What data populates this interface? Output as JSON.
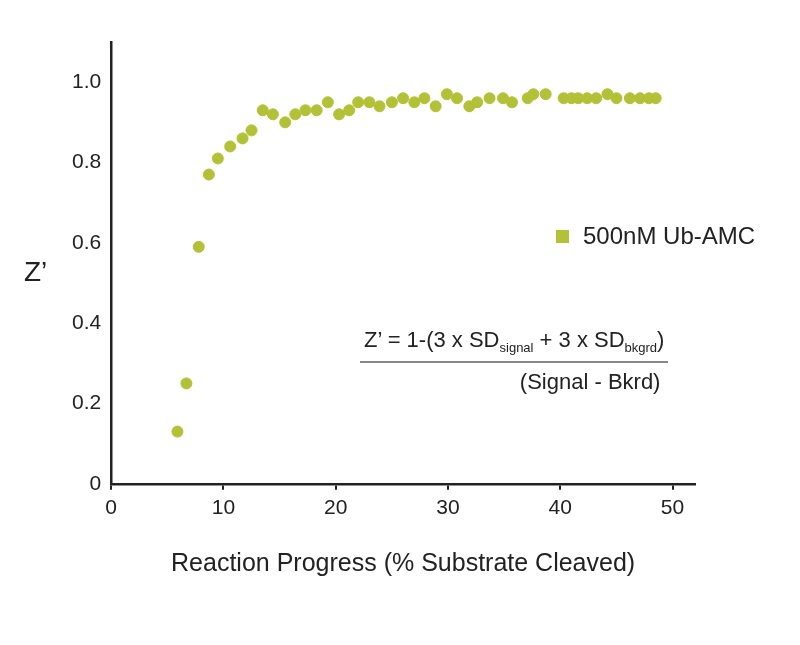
{
  "chart_data": {
    "type": "scatter",
    "x_label": "Reaction Progress (% Substrate Cleaved)",
    "y_label": "Z’",
    "series": [
      {
        "name": "500nM Ub-AMC",
        "color": "#b3c136",
        "marker": "circle",
        "x": [
          5.9,
          6.7,
          7.8,
          8.7,
          9.5,
          10.6,
          11.7,
          12.5,
          13.5,
          14.4,
          15.5,
          16.4,
          17.3,
          18.3,
          19.3,
          20.3,
          21.2,
          22.0,
          23.0,
          23.9,
          25.0,
          26.0,
          27.0,
          27.9,
          28.9,
          29.9,
          30.8,
          31.9,
          32.6,
          33.7,
          34.9,
          35.7,
          37.1,
          37.6,
          38.7,
          40.3,
          41.0,
          41.6,
          42.4,
          43.2,
          44.2,
          45.0,
          46.2,
          47.1,
          47.9,
          48.5
        ],
        "values": [
          0.13,
          0.25,
          0.59,
          0.77,
          0.81,
          0.84,
          0.86,
          0.88,
          0.93,
          0.92,
          0.9,
          0.92,
          0.93,
          0.93,
          0.95,
          0.92,
          0.93,
          0.95,
          0.95,
          0.94,
          0.95,
          0.96,
          0.95,
          0.96,
          0.94,
          0.97,
          0.96,
          0.94,
          0.95,
          0.96,
          0.96,
          0.95,
          0.96,
          0.97,
          0.97,
          0.96,
          0.96,
          0.96,
          0.96,
          0.96,
          0.97,
          0.96,
          0.96,
          0.96,
          0.96,
          0.96
        ]
      }
    ],
    "xlim": [
      0,
      52
    ],
    "xticks": [
      0,
      10,
      20,
      30,
      40,
      50
    ],
    "ylim": [
      0,
      1.1
    ],
    "yticks": [
      0,
      0.2,
      0.4,
      0.6,
      0.8,
      {
        "value": 1,
        "label": "1.0"
      }
    ],
    "grid": false,
    "legend": "right",
    "annotation": {
      "numerator": [
        {
          "text": "Z’ = 1-(3 x SD"
        },
        {
          "text": "signal",
          "sub": true
        },
        {
          "text": " + 3 x SD"
        },
        {
          "text": "bkgrd",
          "sub": true
        },
        {
          "text": ")"
        }
      ],
      "denominator": "(Signal - Bkrd)"
    }
  }
}
